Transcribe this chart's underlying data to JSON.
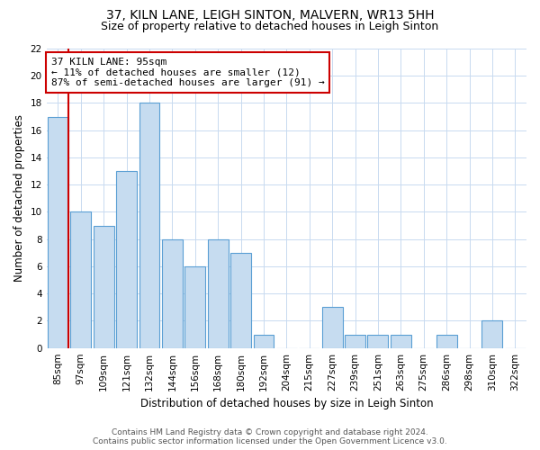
{
  "title": "37, KILN LANE, LEIGH SINTON, MALVERN, WR13 5HH",
  "subtitle": "Size of property relative to detached houses in Leigh Sinton",
  "xlabel": "Distribution of detached houses by size in Leigh Sinton",
  "ylabel": "Number of detached properties",
  "bar_labels": [
    "85sqm",
    "97sqm",
    "109sqm",
    "121sqm",
    "132sqm",
    "144sqm",
    "156sqm",
    "168sqm",
    "180sqm",
    "192sqm",
    "204sqm",
    "215sqm",
    "227sqm",
    "239sqm",
    "251sqm",
    "263sqm",
    "275sqm",
    "286sqm",
    "298sqm",
    "310sqm",
    "322sqm"
  ],
  "bar_values": [
    17,
    10,
    9,
    13,
    18,
    8,
    6,
    8,
    7,
    1,
    0,
    0,
    3,
    1,
    1,
    1,
    0,
    1,
    0,
    2,
    0
  ],
  "bar_color": "#c6dcf0",
  "bar_edge_color": "#5a9fd4",
  "annotation_text": "37 KILN LANE: 95sqm\n← 11% of detached houses are smaller (12)\n87% of semi-detached houses are larger (91) →",
  "annotation_box_edge": "#cc0000",
  "red_line_color": "#cc0000",
  "ylim": [
    0,
    22
  ],
  "yticks": [
    0,
    2,
    4,
    6,
    8,
    10,
    12,
    14,
    16,
    18,
    20,
    22
  ],
  "footer_line1": "Contains HM Land Registry data © Crown copyright and database right 2024.",
  "footer_line2": "Contains public sector information licensed under the Open Government Licence v3.0.",
  "bg_color": "#ffffff",
  "grid_color": "#c8daf0",
  "title_fontsize": 10,
  "subtitle_fontsize": 9,
  "axis_label_fontsize": 8.5,
  "tick_fontsize": 7.5,
  "annotation_fontsize": 8,
  "footer_fontsize": 6.5
}
